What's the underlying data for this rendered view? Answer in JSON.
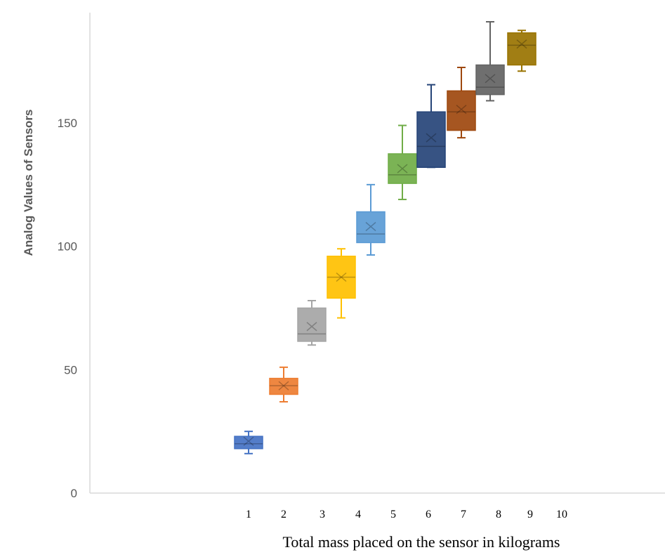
{
  "chart_data": {
    "type": "box",
    "title": "",
    "xlabel": "Total mass placed on the sensor in kilograms",
    "ylabel": "Analog Values of Sensors",
    "ylim": [
      0,
      200
    ],
    "yticks": [
      "0",
      "50",
      "100",
      "150"
    ],
    "ytick_values": [
      0,
      50,
      100,
      150
    ],
    "categories": [
      "1",
      "2",
      "3",
      "4",
      "5",
      "6",
      "7",
      "8",
      "9",
      "10"
    ],
    "grid": false,
    "legend": "none",
    "series": [
      {
        "name": "1",
        "color": "#4472c4",
        "min": 16,
        "q1": 18,
        "median": 20,
        "q3": 23,
        "max": 25,
        "mean": 21
      },
      {
        "name": "2",
        "color": "#ed7d31",
        "min": 37,
        "q1": 40,
        "median": 43.5,
        "q3": 46.5,
        "max": 51,
        "mean": 43.5
      },
      {
        "name": "3",
        "color": "#a5a5a5",
        "min": 60,
        "q1": 61.5,
        "median": 64.5,
        "q3": 75,
        "max": 78,
        "mean": 67.5
      },
      {
        "name": "4",
        "color": "#ffc000",
        "min": 71,
        "q1": 79,
        "median": 87.5,
        "q3": 96,
        "max": 99,
        "mean": 87.5
      },
      {
        "name": "5",
        "color": "#5b9bd5",
        "min": 96.5,
        "q1": 101.5,
        "median": 105,
        "q3": 114,
        "max": 125,
        "mean": 108
      },
      {
        "name": "6",
        "color": "#70ad47",
        "min": 119,
        "q1": 125.5,
        "median": 129,
        "q3": 137.5,
        "max": 149,
        "mean": 131.5
      },
      {
        "name": "7",
        "color": "#264478",
        "min": 132,
        "q1": 132,
        "median": 140.5,
        "q3": 154.5,
        "max": 165.5,
        "mean": 144
      },
      {
        "name": "8",
        "color": "#9e480e",
        "min": 144,
        "q1": 147,
        "median": 154.5,
        "q3": 163,
        "max": 172.5,
        "mean": 155.5
      },
      {
        "name": "9",
        "color": "#636363",
        "min": 159,
        "q1": 161.5,
        "median": 164.5,
        "q3": 173.5,
        "max": 191,
        "mean": 168
      },
      {
        "name": "10",
        "color": "#997300",
        "min": 171,
        "q1": 173.5,
        "median": 181.5,
        "q3": 186.5,
        "max": 187.5,
        "mean": 182
      }
    ]
  }
}
